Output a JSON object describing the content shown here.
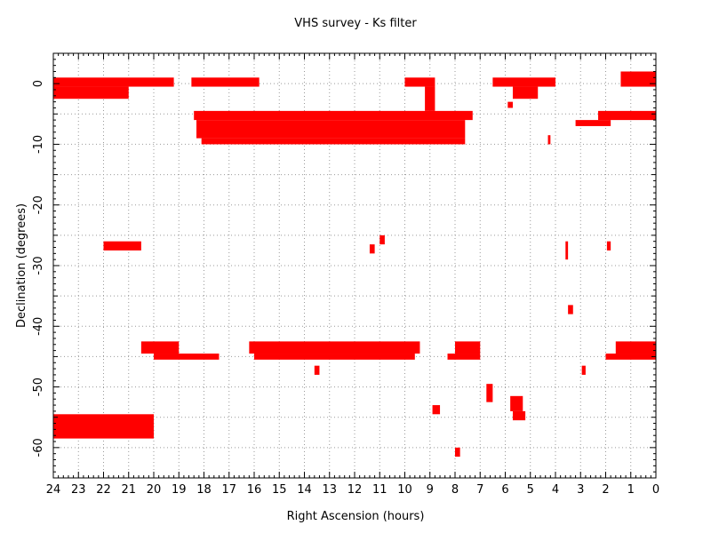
{
  "chart_data": {
    "type": "scatter",
    "title": "VHS survey - Ks filter",
    "xlabel": "Right Ascension (hours)",
    "ylabel": "Declination (degrees)",
    "xlim": [
      24,
      0
    ],
    "ylim": [
      -65,
      5
    ],
    "x_ticks": [
      24,
      23,
      22,
      21,
      20,
      19,
      18,
      17,
      16,
      15,
      14,
      13,
      12,
      11,
      10,
      9,
      8,
      7,
      6,
      5,
      4,
      3,
      2,
      1,
      0
    ],
    "y_ticks": [
      0,
      -10,
      -20,
      -30,
      -40,
      -50,
      -60
    ],
    "grid": true,
    "color": "#ff0000",
    "series": [
      {
        "name": "",
        "patches": [
          {
            "ra": [
              19.2,
              24.0
            ],
            "dec": [
              -0.5,
              1.0
            ]
          },
          {
            "ra": [
              21.0,
              24.0
            ],
            "dec": [
              -2.5,
              -0.5
            ]
          },
          {
            "ra": [
              15.8,
              18.5
            ],
            "dec": [
              -0.5,
              1.0
            ]
          },
          {
            "ra": [
              8.8,
              10.0
            ],
            "dec": [
              -0.5,
              1.0
            ]
          },
          {
            "ra": [
              8.8,
              9.2
            ],
            "dec": [
              -4.5,
              -0.5
            ]
          },
          {
            "ra": [
              4.0,
              6.5
            ],
            "dec": [
              -0.5,
              1.0
            ]
          },
          {
            "ra": [
              4.7,
              5.7
            ],
            "dec": [
              -2.5,
              -0.5
            ]
          },
          {
            "ra": [
              5.7,
              5.9
            ],
            "dec": [
              -4.0,
              -3.0
            ]
          },
          {
            "ra": [
              0.0,
              1.4
            ],
            "dec": [
              -0.5,
              2.0
            ]
          },
          {
            "ra": [
              7.3,
              18.4
            ],
            "dec": [
              -6.0,
              -4.5
            ]
          },
          {
            "ra": [
              7.6,
              18.3
            ],
            "dec": [
              -9.0,
              -6.0
            ]
          },
          {
            "ra": [
              7.6,
              18.1
            ],
            "dec": [
              -10.0,
              -9.0
            ]
          },
          {
            "ra": [
              0.0,
              2.3
            ],
            "dec": [
              -6.0,
              -4.5
            ]
          },
          {
            "ra": [
              1.8,
              3.2
            ],
            "dec": [
              -7.0,
              -6.0
            ]
          },
          {
            "ra": [
              4.2,
              4.3
            ],
            "dec": [
              -10.0,
              -8.5
            ]
          },
          {
            "ra": [
              20.5,
              22.0
            ],
            "dec": [
              -27.5,
              -26.0
            ]
          },
          {
            "ra": [
              11.2,
              11.4
            ],
            "dec": [
              -28.0,
              -26.5
            ]
          },
          {
            "ra": [
              10.8,
              11.0
            ],
            "dec": [
              -26.5,
              -25.0
            ]
          },
          {
            "ra": [
              3.5,
              3.6
            ],
            "dec": [
              -29.0,
              -26.0
            ]
          },
          {
            "ra": [
              1.8,
              1.95
            ],
            "dec": [
              -27.5,
              -26.0
            ]
          },
          {
            "ra": [
              3.3,
              3.5
            ],
            "dec": [
              -38.0,
              -36.5
            ]
          },
          {
            "ra": [
              19.0,
              20.5
            ],
            "dec": [
              -44.5,
              -42.5
            ]
          },
          {
            "ra": [
              17.4,
              20.0
            ],
            "dec": [
              -45.5,
              -44.5
            ]
          },
          {
            "ra": [
              9.4,
              16.2
            ],
            "dec": [
              -44.5,
              -42.5
            ]
          },
          {
            "ra": [
              9.6,
              16.0
            ],
            "dec": [
              -45.5,
              -44.5
            ]
          },
          {
            "ra": [
              7.0,
              8.0
            ],
            "dec": [
              -44.5,
              -42.5
            ]
          },
          {
            "ra": [
              7.0,
              8.3
            ],
            "dec": [
              -45.5,
              -44.5
            ]
          },
          {
            "ra": [
              0.0,
              1.6
            ],
            "dec": [
              -44.5,
              -42.5
            ]
          },
          {
            "ra": [
              0.0,
              2.0
            ],
            "dec": [
              -45.5,
              -44.5
            ]
          },
          {
            "ra": [
              13.4,
              13.6
            ],
            "dec": [
              -48.0,
              -46.5
            ]
          },
          {
            "ra": [
              2.8,
              2.95
            ],
            "dec": [
              -48.0,
              -46.5
            ]
          },
          {
            "ra": [
              6.5,
              6.75
            ],
            "dec": [
              -52.5,
              -49.5
            ]
          },
          {
            "ra": [
              8.6,
              8.9
            ],
            "dec": [
              -54.5,
              -53.0
            ]
          },
          {
            "ra": [
              5.3,
              5.8
            ],
            "dec": [
              -54.0,
              -51.5
            ]
          },
          {
            "ra": [
              5.2,
              5.7
            ],
            "dec": [
              -55.5,
              -54.0
            ]
          },
          {
            "ra": [
              7.8,
              8.0
            ],
            "dec": [
              -61.5,
              -60.0
            ]
          },
          {
            "ra": [
              20.0,
              24.0
            ],
            "dec": [
              -58.5,
              -54.5
            ]
          }
        ]
      }
    ]
  }
}
